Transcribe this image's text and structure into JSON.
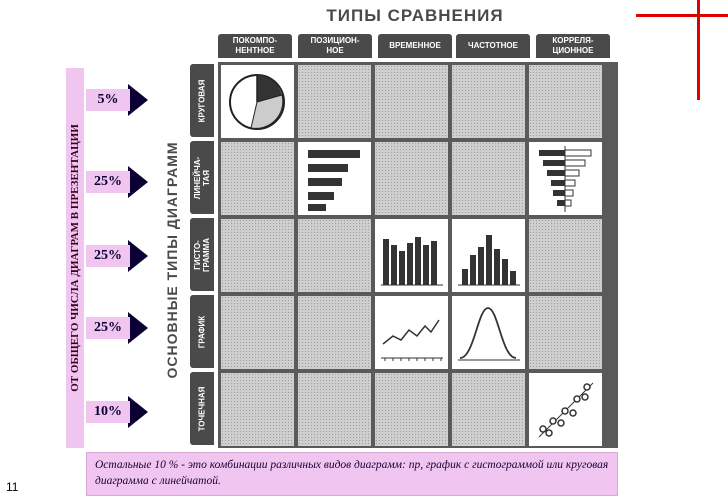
{
  "title": "ТИПЫ СРАВНЕНИЯ",
  "columns": [
    "ПОКОМПО-\nНЕНТНОЕ",
    "ПОЗИЦИОН-\nНОЕ",
    "ВРЕМЕННОЕ",
    "ЧАСТОТНОЕ",
    "КОРРЕЛЯ-\nЦИОННОЕ"
  ],
  "rows": [
    "КРУГОВАЯ",
    "ЛИНЕЙЧА-\nТАЯ",
    "ГИСТО-\nГРАММА",
    "ГРАФИК",
    "ТОЧЕЧНАЯ"
  ],
  "side_title": "ОСНОВНЫЕ ТИПЫ ДИАГРАММ",
  "pink_label": "ОТ ОБЩЕГО ЧИСЛА ДИАГРАМ В ПРЕЗЕНТАЦИИ",
  "percentages": [
    "5%",
    "25%",
    "25%",
    "25%",
    "10%"
  ],
  "footer_text": "Остальные 10 % - это комбинации различных видов диаграмм: пр, график с гистограммой или круговая диаграмма с линейчатой.",
  "page_number": "11",
  "colors": {
    "accent_red": "#e00000",
    "pink": "#f0c6f0",
    "navy": "#0a0033",
    "dark_gray": "#4a4a4a"
  }
}
